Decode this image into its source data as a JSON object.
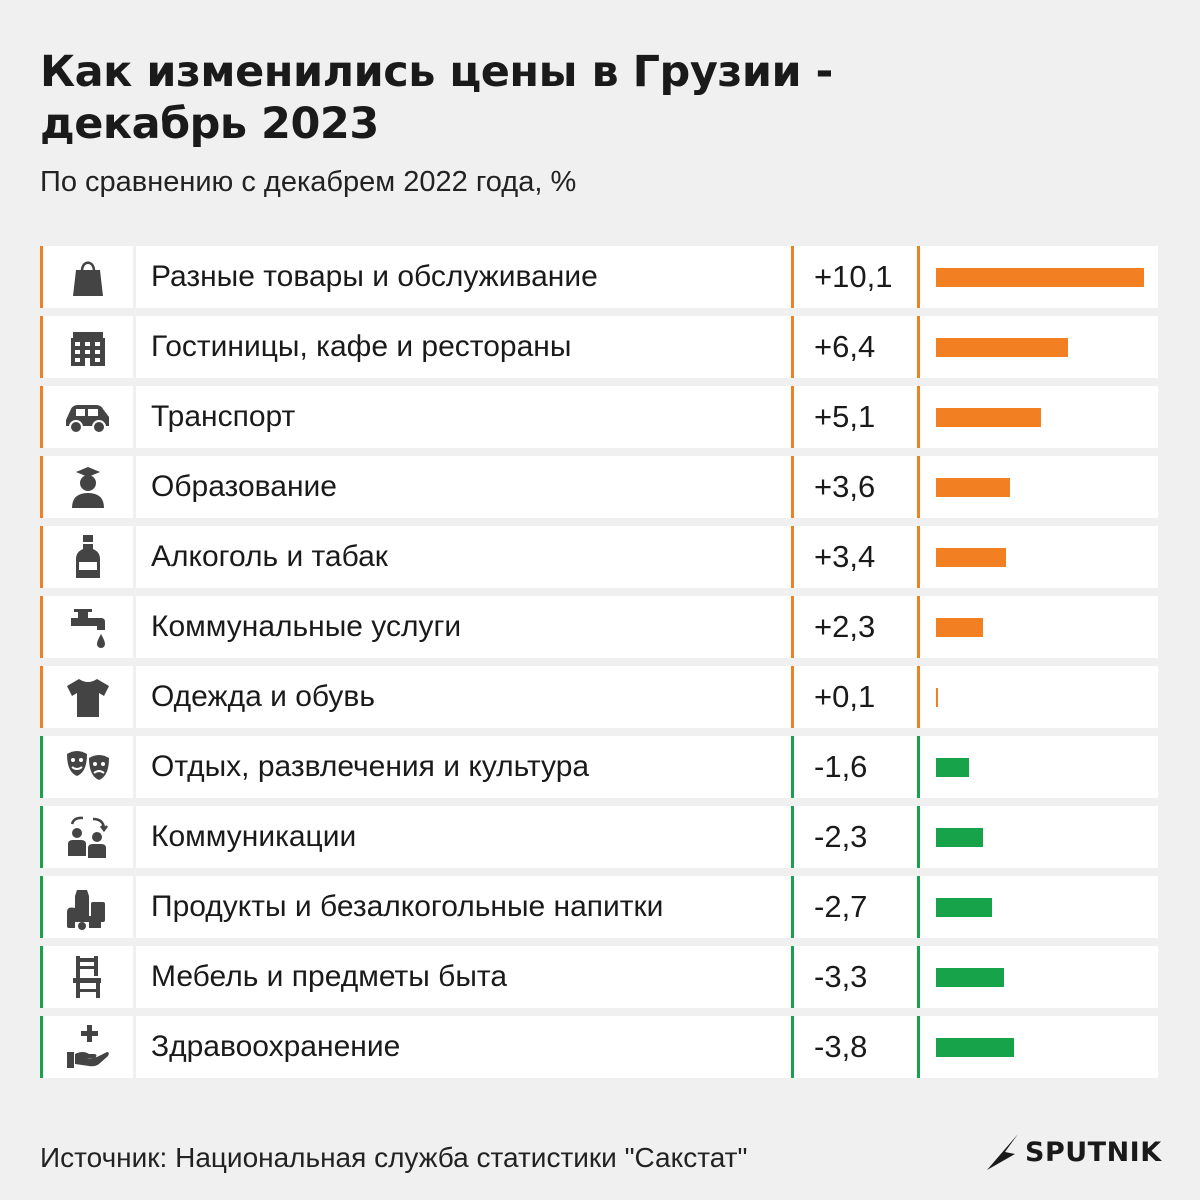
{
  "title": "Как изменились цены в Грузии - декабрь 2023",
  "subtitle": "По сравнению с декабрем 2022 года, %",
  "source": "Источник: Национальная служба статистики \"Сакстат\"",
  "logo": "SPUTNIK",
  "colors": {
    "positive": "#f28023",
    "negative": "#17a34a",
    "background": "#f0f0f0"
  },
  "chart_data": {
    "type": "bar",
    "orientation": "horizontal",
    "title": "Как изменились цены в Грузии - декабрь 2023",
    "subtitle": "По сравнению с декабрем 2022 года, %",
    "categories": [
      "Разные товары и обслуживание",
      "Гостиницы, кафе и рестораны",
      "Транспорт",
      "Образование",
      "Алкоголь и табак",
      "Коммунальные услуги",
      "Одежда и обувь",
      "Отдых, развлечения и культура",
      "Коммуникации",
      "Продукты и безалкогольные напитки",
      "Мебель и предметы быта",
      "Здравоохранение"
    ],
    "values": [
      10.1,
      6.4,
      5.1,
      3.6,
      3.4,
      2.3,
      0.1,
      -1.6,
      -2.3,
      -2.7,
      -3.3,
      -3.8
    ],
    "value_labels": [
      "+10,1",
      "+6,4",
      "+5,1",
      "+3,6",
      "+3,4",
      "+2,3",
      "+0,1",
      "-1,6",
      "-2,3",
      "-2,7",
      "-3,3",
      "-3,8"
    ],
    "icons": [
      "shopping-bag-icon",
      "hotel-building-icon",
      "car-icon",
      "graduate-icon",
      "bottle-icon",
      "faucet-icon",
      "tshirt-icon",
      "theater-masks-icon",
      "communication-people-icon",
      "groceries-icon",
      "chair-icon",
      "healthcare-hand-icon"
    ]
  }
}
